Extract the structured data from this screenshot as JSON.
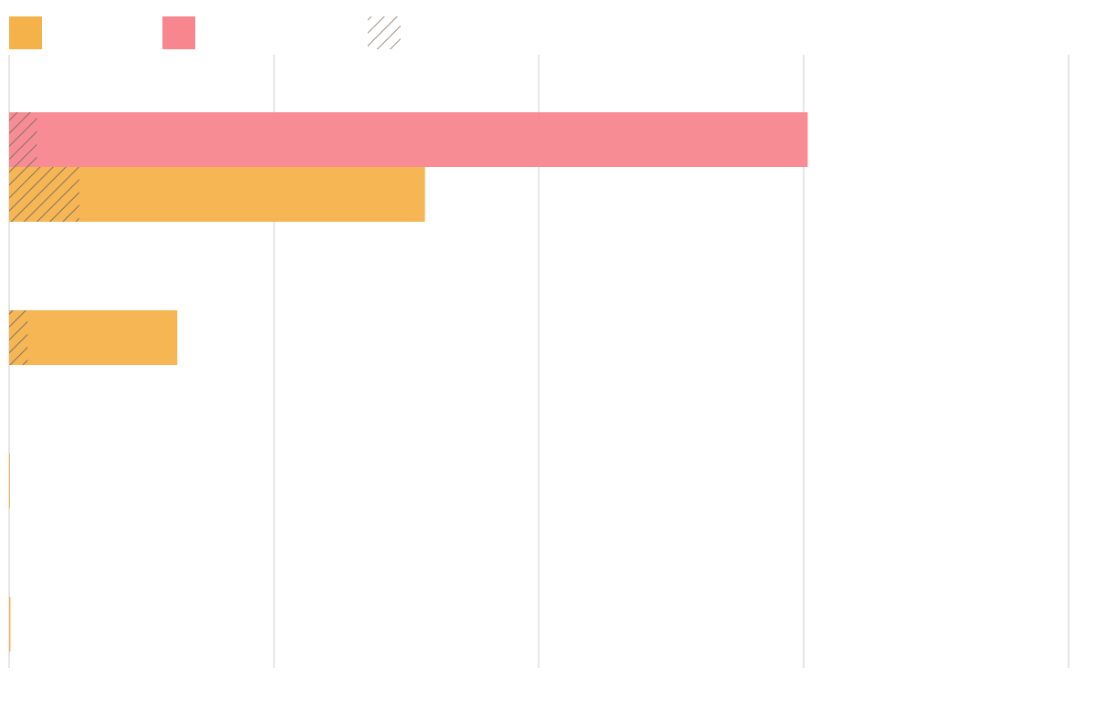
{
  "chart_data": {
    "type": "bar",
    "orientation": "horizontal",
    "title": "",
    "xlabel": "",
    "ylabel": "",
    "xlim": [
      0,
      4
    ],
    "grid": true,
    "legend_placement": "top-left",
    "legend": [
      {
        "swatch": "solid",
        "color": "#f5b24a"
      },
      {
        "swatch": "solid",
        "color": "#f8868e"
      },
      {
        "swatch": "hatch",
        "color": "#9e8e7e"
      }
    ],
    "colors": {
      "orange": "#f5b24a",
      "pink": "#f8868e",
      "hatch": "#8a8070",
      "grid": "#e6e6e6"
    },
    "categories": [
      "",
      "",
      "",
      ""
    ],
    "series": [
      {
        "color": "#f8868e",
        "values": [
          3.015,
          0,
          0,
          0
        ],
        "hatched": [
          0.105,
          0,
          0,
          0
        ]
      },
      {
        "color": "#f5b24a",
        "values": [
          1.57,
          0.635,
          0.003,
          0.005
        ],
        "hatched": [
          0.265,
          0.07,
          0,
          0
        ]
      }
    ]
  }
}
